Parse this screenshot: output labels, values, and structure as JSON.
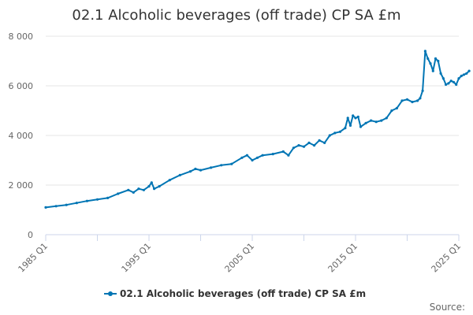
{
  "chart_data": {
    "type": "line",
    "title": "02.1 Alcoholic beverages (off trade) CP SA £m",
    "xlabel": "",
    "ylabel": "",
    "ylim": [
      0,
      8000
    ],
    "yticks": [
      0,
      2000,
      4000,
      6000,
      8000
    ],
    "ytick_labels": [
      "0",
      "2 000",
      "4 000",
      "6 000",
      "8 000"
    ],
    "xticks": [
      1985,
      1995,
      2005,
      2015,
      2025
    ],
    "xtick_labels": [
      "1985 Q1",
      "1995 Q1",
      "2005 Q1",
      "2015 Q1",
      "2025 Q1"
    ],
    "xlim": [
      1985,
      2025
    ],
    "grid": true,
    "legend_position": "bottom",
    "series": [
      {
        "name": "02.1 Alcoholic beverages (off trade) CP SA £m",
        "color": "#0075b4",
        "points": [
          [
            1985.0,
            1100
          ],
          [
            1986.0,
            1150
          ],
          [
            1987.0,
            1200
          ],
          [
            1988.0,
            1280
          ],
          [
            1989.0,
            1360
          ],
          [
            1990.0,
            1420
          ],
          [
            1991.0,
            1480
          ],
          [
            1992.0,
            1650
          ],
          [
            1993.0,
            1800
          ],
          [
            1993.5,
            1700
          ],
          [
            1994.0,
            1850
          ],
          [
            1994.5,
            1800
          ],
          [
            1995.0,
            1950
          ],
          [
            1995.25,
            2100
          ],
          [
            1995.5,
            1850
          ],
          [
            1996.0,
            1950
          ],
          [
            1997.0,
            2200
          ],
          [
            1998.0,
            2400
          ],
          [
            1999.0,
            2550
          ],
          [
            1999.5,
            2650
          ],
          [
            2000.0,
            2600
          ],
          [
            2001.0,
            2700
          ],
          [
            2002.0,
            2800
          ],
          [
            2003.0,
            2850
          ],
          [
            2004.0,
            3100
          ],
          [
            2004.5,
            3200
          ],
          [
            2005.0,
            3000
          ],
          [
            2005.5,
            3100
          ],
          [
            2006.0,
            3200
          ],
          [
            2007.0,
            3250
          ],
          [
            2008.0,
            3350
          ],
          [
            2008.5,
            3200
          ],
          [
            2009.0,
            3500
          ],
          [
            2009.5,
            3600
          ],
          [
            2010.0,
            3550
          ],
          [
            2010.5,
            3700
          ],
          [
            2011.0,
            3600
          ],
          [
            2011.5,
            3800
          ],
          [
            2012.0,
            3700
          ],
          [
            2012.5,
            4000
          ],
          [
            2013.0,
            4100
          ],
          [
            2013.5,
            4150
          ],
          [
            2014.0,
            4300
          ],
          [
            2014.25,
            4700
          ],
          [
            2014.5,
            4400
          ],
          [
            2014.75,
            4800
          ],
          [
            2015.0,
            4700
          ],
          [
            2015.25,
            4750
          ],
          [
            2015.5,
            4350
          ],
          [
            2016.0,
            4500
          ],
          [
            2016.5,
            4600
          ],
          [
            2017.0,
            4550
          ],
          [
            2017.5,
            4600
          ],
          [
            2018.0,
            4700
          ],
          [
            2018.5,
            5000
          ],
          [
            2019.0,
            5100
          ],
          [
            2019.5,
            5400
          ],
          [
            2020.0,
            5450
          ],
          [
            2020.5,
            5350
          ],
          [
            2021.0,
            5400
          ],
          [
            2021.25,
            5500
          ],
          [
            2021.5,
            5800
          ],
          [
            2021.75,
            7400
          ],
          [
            2022.0,
            7100
          ],
          [
            2022.25,
            6900
          ],
          [
            2022.5,
            6600
          ],
          [
            2022.75,
            7100
          ],
          [
            2023.0,
            7000
          ],
          [
            2023.25,
            6500
          ],
          [
            2023.5,
            6300
          ],
          [
            2023.75,
            6050
          ],
          [
            2024.0,
            6100
          ],
          [
            2024.25,
            6200
          ],
          [
            2024.5,
            6150
          ],
          [
            2024.75,
            6050
          ],
          [
            2025.0,
            6300
          ],
          [
            2025.25,
            6400
          ],
          [
            2025.5,
            6450
          ],
          [
            2025.75,
            6500
          ],
          [
            2026.0,
            6600
          ]
        ]
      }
    ],
    "source_label": "Source:"
  }
}
